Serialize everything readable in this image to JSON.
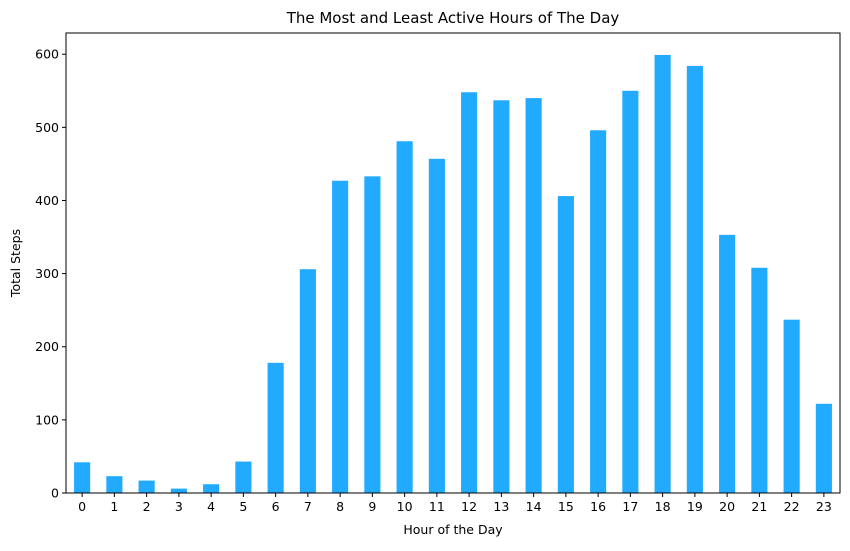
{
  "chart_data": {
    "type": "bar",
    "title": "The Most and Least Active Hours of The Day",
    "xlabel": "Hour of the Day",
    "ylabel": "Total Steps",
    "categories": [
      "0",
      "1",
      "2",
      "3",
      "4",
      "5",
      "6",
      "7",
      "8",
      "9",
      "10",
      "11",
      "12",
      "13",
      "14",
      "15",
      "16",
      "17",
      "18",
      "19",
      "20",
      "21",
      "22",
      "23"
    ],
    "series": [
      {
        "values": [
          42,
          23,
          17,
          6,
          12,
          43,
          178,
          306,
          427,
          433,
          481,
          457,
          548,
          537,
          540,
          406,
          496,
          550,
          599,
          584,
          353,
          308,
          237,
          122
        ]
      }
    ],
    "ylim": [
      0,
      629
    ],
    "yticks": [
      0,
      100,
      200,
      300,
      400,
      500,
      600
    ],
    "bar_color": "#22aaff",
    "grid": false,
    "legend": "none"
  }
}
